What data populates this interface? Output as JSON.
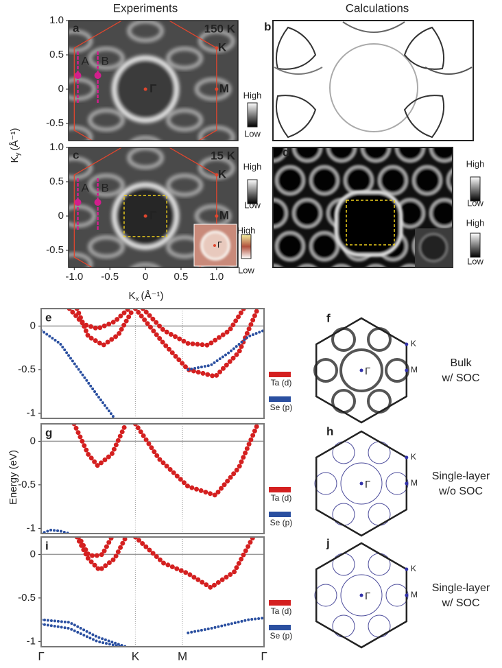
{
  "headers": {
    "experiments": "Experiments",
    "calculations": "Calculations"
  },
  "exp_axes": {
    "xlabel": {
      "main": "K",
      "sub": "x",
      "unit": "(Å⁻¹)"
    },
    "ylabel": {
      "main": "K",
      "sub": "y",
      "unit": "(Å⁻¹)"
    },
    "xlim": [
      -1.08,
      1.3
    ],
    "ylim": [
      -0.75,
      1.0
    ],
    "xticks": [
      {
        "value": -1,
        "label": "-1.0"
      },
      -0.5,
      0,
      0.5,
      {
        "value": 1,
        "label": "1.0"
      }
    ],
    "yticks": [
      {
        "value": 1,
        "label": "1.0"
      },
      0.5,
      0,
      -0.5
    ]
  },
  "exp_panels": [
    {
      "label": "a",
      "temperature": "150 K",
      "points": {
        "K": "K",
        "M": "M",
        "G": "Γ",
        "A": "A",
        "B": "B"
      }
    },
    {
      "label": "c",
      "temperature": "15 K",
      "points": {
        "K": "K",
        "M": "M",
        "G": "Γ",
        "A": "A",
        "B": "B"
      },
      "inset_point": "Γ"
    }
  ],
  "calc_panels": [
    {
      "label": "b"
    },
    {
      "label": "d"
    }
  ],
  "colorbars": [
    {
      "high": "High",
      "low": "Low"
    },
    {
      "high": "High",
      "low": "Low"
    },
    {
      "high": "High",
      "low": "Low"
    },
    {
      "high": "High",
      "low": "Low"
    },
    {
      "high": "High",
      "low": "Low"
    }
  ],
  "band_axes": {
    "ylabel": "Energy (eV)",
    "ylim": [
      -1.06,
      0.2
    ],
    "yticks": [
      0,
      -0.5,
      -1
    ],
    "xlim": [
      0,
      2.366
    ],
    "xticks": [
      {
        "value": 0,
        "label": "Γ"
      },
      {
        "value": 1,
        "label": "K"
      },
      {
        "value": 1.5,
        "label": "M"
      },
      {
        "value": 2.366,
        "label": "Γ"
      }
    ]
  },
  "band_panels": [
    {
      "label": "e",
      "series": [
        {
          "name": "Ta (d)",
          "color": "#d42020",
          "bands": [
            {
              "x": [
                0.3,
                0.45,
                0.6,
                0.78,
                0.93
              ],
              "values": [
                0.2,
                0.02,
                -0.03,
                0.05,
                0.2
              ]
            },
            {
              "x": [
                0.38,
                0.5,
                0.66,
                0.82,
                0.98
              ],
              "values": [
                0.2,
                -0.12,
                -0.22,
                -0.1,
                0.2
              ]
            },
            {
              "x": [
                1.08,
                1.3,
                1.56,
                1.77,
                2.0,
                2.15
              ],
              "values": [
                0.2,
                -0.05,
                -0.2,
                -0.22,
                -0.05,
                0.2
              ]
            },
            {
              "x": [
                1.0,
                1.3,
                1.56,
                1.85,
                2.1,
                2.3
              ],
              "values": [
                0.2,
                -0.2,
                -0.5,
                -0.58,
                -0.3,
                0.2
              ]
            }
          ]
        },
        {
          "name": "Se (p)",
          "color": "#2a4fa0",
          "bands": [
            {
              "x": [
                0,
                0.2,
                0.4,
                0.6,
                0.78
              ],
              "values": [
                -0.05,
                -0.2,
                -0.5,
                -0.8,
                -1.06
              ]
            },
            {
              "x": [
                1.56,
                1.8,
                2.0,
                2.2,
                2.366
              ],
              "values": [
                -0.5,
                -0.45,
                -0.3,
                -0.12,
                -0.05
              ]
            }
          ]
        }
      ]
    },
    {
      "label": "g",
      "series": [
        {
          "name": "Ta (d)",
          "color": "#d42020",
          "bands": [
            {
              "x": [
                0.35,
                0.5,
                0.6,
                0.75,
                0.9
              ],
              "values": [
                0.2,
                -0.15,
                -0.28,
                -0.15,
                0.2
              ]
            },
            {
              "x": [
                1.0,
                1.25,
                1.56,
                1.85,
                2.1,
                2.3
              ],
              "values": [
                0.2,
                -0.2,
                -0.52,
                -0.62,
                -0.3,
                0.2
              ]
            }
          ]
        },
        {
          "name": "Se (p)",
          "color": "#2a4fa0",
          "bands": [
            {
              "x": [
                0,
                0.1,
                0.2,
                0.3
              ],
              "values": [
                -1.06,
                -1.02,
                -1.03,
                -1.06
              ]
            }
          ]
        }
      ]
    },
    {
      "label": "i",
      "series": [
        {
          "name": "Ta (d)",
          "color": "#d42020",
          "bands": [
            {
              "x": [
                0.38,
                0.5,
                0.62,
                0.78,
                0.9
              ],
              "values": [
                0.2,
                -0.05,
                -0.18,
                -0.05,
                0.2
              ]
            },
            {
              "x": [
                0.4,
                0.5,
                0.56,
                0.65,
                0.75
              ],
              "values": [
                0.2,
                0.0,
                -0.02,
                0.0,
                0.2
              ]
            },
            {
              "x": [
                1.0,
                1.3,
                1.56,
                1.8,
                2.05,
                2.25
              ],
              "values": [
                0.2,
                -0.1,
                -0.22,
                -0.38,
                -0.2,
                0.2
              ]
            }
          ]
        },
        {
          "name": "Se (p)",
          "color": "#2a4fa0",
          "bands": [
            {
              "x": [
                0,
                0.3,
                0.6,
                0.9
              ],
              "values": [
                -0.75,
                -0.78,
                -0.95,
                -1.06
              ]
            },
            {
              "x": [
                0,
                0.3,
                0.6,
                0.85
              ],
              "values": [
                -0.8,
                -0.85,
                -1.0,
                -1.06
              ]
            },
            {
              "x": [
                1.56,
                1.8,
                2.0,
                2.2,
                2.366
              ],
              "values": [
                -0.9,
                -0.85,
                -0.8,
                -0.75,
                -0.73
              ]
            }
          ]
        }
      ]
    }
  ],
  "bz_panels": [
    {
      "label": "f",
      "caption": [
        "Bulk",
        "w/ SOC"
      ],
      "points": {
        "K": "K",
        "M": "M",
        "G": "Γ"
      }
    },
    {
      "label": "h",
      "caption": [
        "Single-layer",
        "w/o SOC"
      ],
      "points": {
        "K": "K",
        "M": "M",
        "G": "Γ"
      }
    },
    {
      "label": "j",
      "caption": [
        "Single-layer",
        "w/ SOC"
      ],
      "points": {
        "K": "K",
        "M": "M",
        "G": "Γ"
      }
    }
  ]
}
